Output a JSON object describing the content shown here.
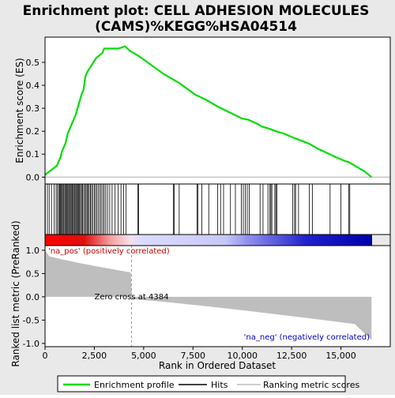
{
  "chart_data": {
    "type": "line",
    "title_line1": "Enrichment plot: CELL ADHESION MOLECULES",
    "title_line2": "(CAMS)%KEGG%HSA04514",
    "xlabel": "Rank in Ordered Dataset",
    "ylabel_top": "Enrichment score (ES)",
    "ylabel_bottom": "Ranked list metric (PreRanked)",
    "xlim": [
      0,
      17500
    ],
    "ylim_top": [
      -0.03,
      0.61
    ],
    "ylim_bottom": [
      -1.07,
      1.1
    ],
    "x_ticks": [
      0,
      2500,
      5000,
      7500,
      10000,
      12500,
      15000
    ],
    "x_tick_labels": [
      "0",
      "2,500",
      "5,000",
      "7,500",
      "10,000",
      "12,500",
      "15,000"
    ],
    "y_ticks_top": [
      0.0,
      0.1,
      0.2,
      0.3,
      0.4,
      0.5
    ],
    "y_tick_labels_top": [
      "0.0",
      "0.1",
      "0.2",
      "0.3",
      "0.4",
      "0.5"
    ],
    "y_ticks_bottom": [
      -1.0,
      -0.5,
      0.0,
      0.5,
      1.0
    ],
    "y_tick_labels_bottom": [
      "-1.0",
      "-0.5",
      "0.0",
      "0.5",
      "1.0"
    ],
    "zero_cross_label": "Zero cross at 4384",
    "zero_cross_x": 4384,
    "pos_label": "'na_pos' (positively correlated)",
    "neg_label": "'na_neg' (negatively correlated)",
    "legend": [
      "Enrichment profile",
      "Hits",
      "Ranking metric scores"
    ],
    "colors": {
      "profile": "#00dd00",
      "hits": "#000000",
      "metric": "#bebebe",
      "zero_line": "#aaaaaa"
    },
    "es_curve": {
      "x": [
        0,
        150,
        300,
        450,
        600,
        700,
        800,
        850,
        950,
        1050,
        1150,
        1250,
        1350,
        1450,
        1550,
        1650,
        1750,
        1850,
        1950,
        2000,
        2050,
        2150,
        2300,
        2450,
        2600,
        2750,
        2900,
        3000,
        3100,
        3300,
        3500,
        3700,
        3900,
        4050,
        4300,
        4700,
        5200,
        6000,
        6800,
        7600,
        8200,
        8800,
        9400,
        10000,
        10300,
        10700,
        11000,
        11400,
        11700,
        12100,
        12500,
        12800,
        13100,
        13400,
        13800,
        14300,
        14800,
        15200,
        15400,
        15800,
        16200,
        16550
      ],
      "y": [
        0.01,
        0.02,
        0.03,
        0.04,
        0.05,
        0.07,
        0.09,
        0.11,
        0.13,
        0.15,
        0.19,
        0.21,
        0.23,
        0.25,
        0.27,
        0.3,
        0.33,
        0.36,
        0.38,
        0.41,
        0.44,
        0.46,
        0.48,
        0.5,
        0.52,
        0.53,
        0.54,
        0.56,
        0.56,
        0.56,
        0.56,
        0.56,
        0.565,
        0.57,
        0.55,
        0.53,
        0.5,
        0.45,
        0.41,
        0.36,
        0.335,
        0.305,
        0.28,
        0.255,
        0.25,
        0.235,
        0.22,
        0.21,
        0.2,
        0.19,
        0.175,
        0.165,
        0.155,
        0.145,
        0.125,
        0.105,
        0.085,
        0.07,
        0.065,
        0.045,
        0.025,
        0.0
      ]
    },
    "hits": [
      15,
      120,
      210,
      330,
      460,
      560,
      630,
      690,
      740,
      780,
      830,
      870,
      920,
      960,
      1010,
      1060,
      1110,
      1150,
      1200,
      1240,
      1290,
      1330,
      1380,
      1430,
      1480,
      1520,
      1570,
      1610,
      1660,
      1710,
      1750,
      1800,
      1850,
      1900,
      1960,
      2020,
      2080,
      2130,
      2180,
      2240,
      2300,
      2360,
      2420,
      2500,
      2560,
      2630,
      2700,
      2780,
      2850,
      2930,
      3000,
      3080,
      3170,
      3280,
      3400,
      3550,
      3700,
      3850,
      3980,
      4100,
      4700,
      4750,
      6500,
      6550,
      6800,
      7700,
      7750,
      7950,
      8300,
      8750,
      8900,
      9050,
      9400,
      9650,
      9950,
      10050,
      10150,
      10250,
      10350,
      10900,
      11050,
      11300,
      11400,
      11450,
      11500,
      11650,
      11700,
      11750,
      12550,
      12650,
      12700,
      12850,
      13400,
      13550,
      14450,
      15000,
      15400,
      15450
    ]
  }
}
